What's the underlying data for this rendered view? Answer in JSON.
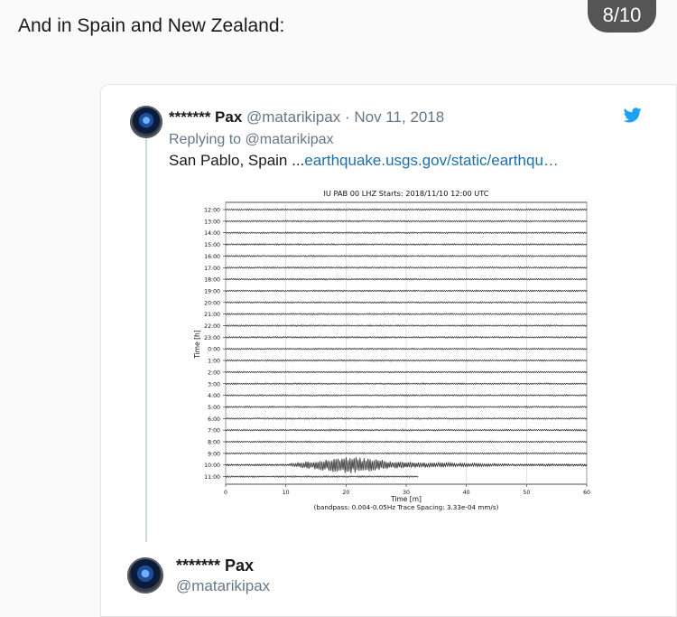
{
  "page_counter": "8/10",
  "intro_text": "And in Spain and New Zealand:",
  "quoted_tweet": {
    "name": "******* Pax",
    "handle": "@matarikipax",
    "separator": "·",
    "date": "Nov 11, 2018",
    "replying_prefix": "Replying to",
    "replying_to": "@matarikipax",
    "text_prefix": "San Pablo, Spain ...",
    "link_text": "earthquake.usgs.gov/static/earthqu…",
    "icon": "twitter-bird-icon",
    "accent_color": "#1da1f2"
  },
  "next_tweet": {
    "name": "******* Pax",
    "handle": "@matarikipax"
  },
  "chart_data": {
    "type": "line",
    "title": "IU PAB 00 LHZ  Starts: 2018/11/10 12:00 UTC",
    "ylabel": "Time [h]",
    "xlabel": "Time [m]",
    "subtitle": "(bandpass: 0.004-0.05Hz  Trace Spacing: 3.33e-04 mm/s)",
    "xlim": [
      0,
      60
    ],
    "x_ticks": [
      "0",
      "10",
      "20",
      "30",
      "40",
      "50",
      "60"
    ],
    "y_ticks": [
      "12:00",
      "13:00",
      "14:00",
      "15:00",
      "16:00",
      "17:00",
      "18:00",
      "19:00",
      "20:00",
      "21:00",
      "22:00",
      "23:00",
      "0:00",
      "1:00",
      "2:00",
      "3:00",
      "4:00",
      "5:00",
      "6:00",
      "7:00",
      "8:00",
      "9:00",
      "10:00",
      "11:00"
    ],
    "event": {
      "hour": "10:00",
      "start_min": 13,
      "peak_min": 20,
      "end_min": 29
    },
    "last_trace_end_min": 32,
    "grid": true
  }
}
